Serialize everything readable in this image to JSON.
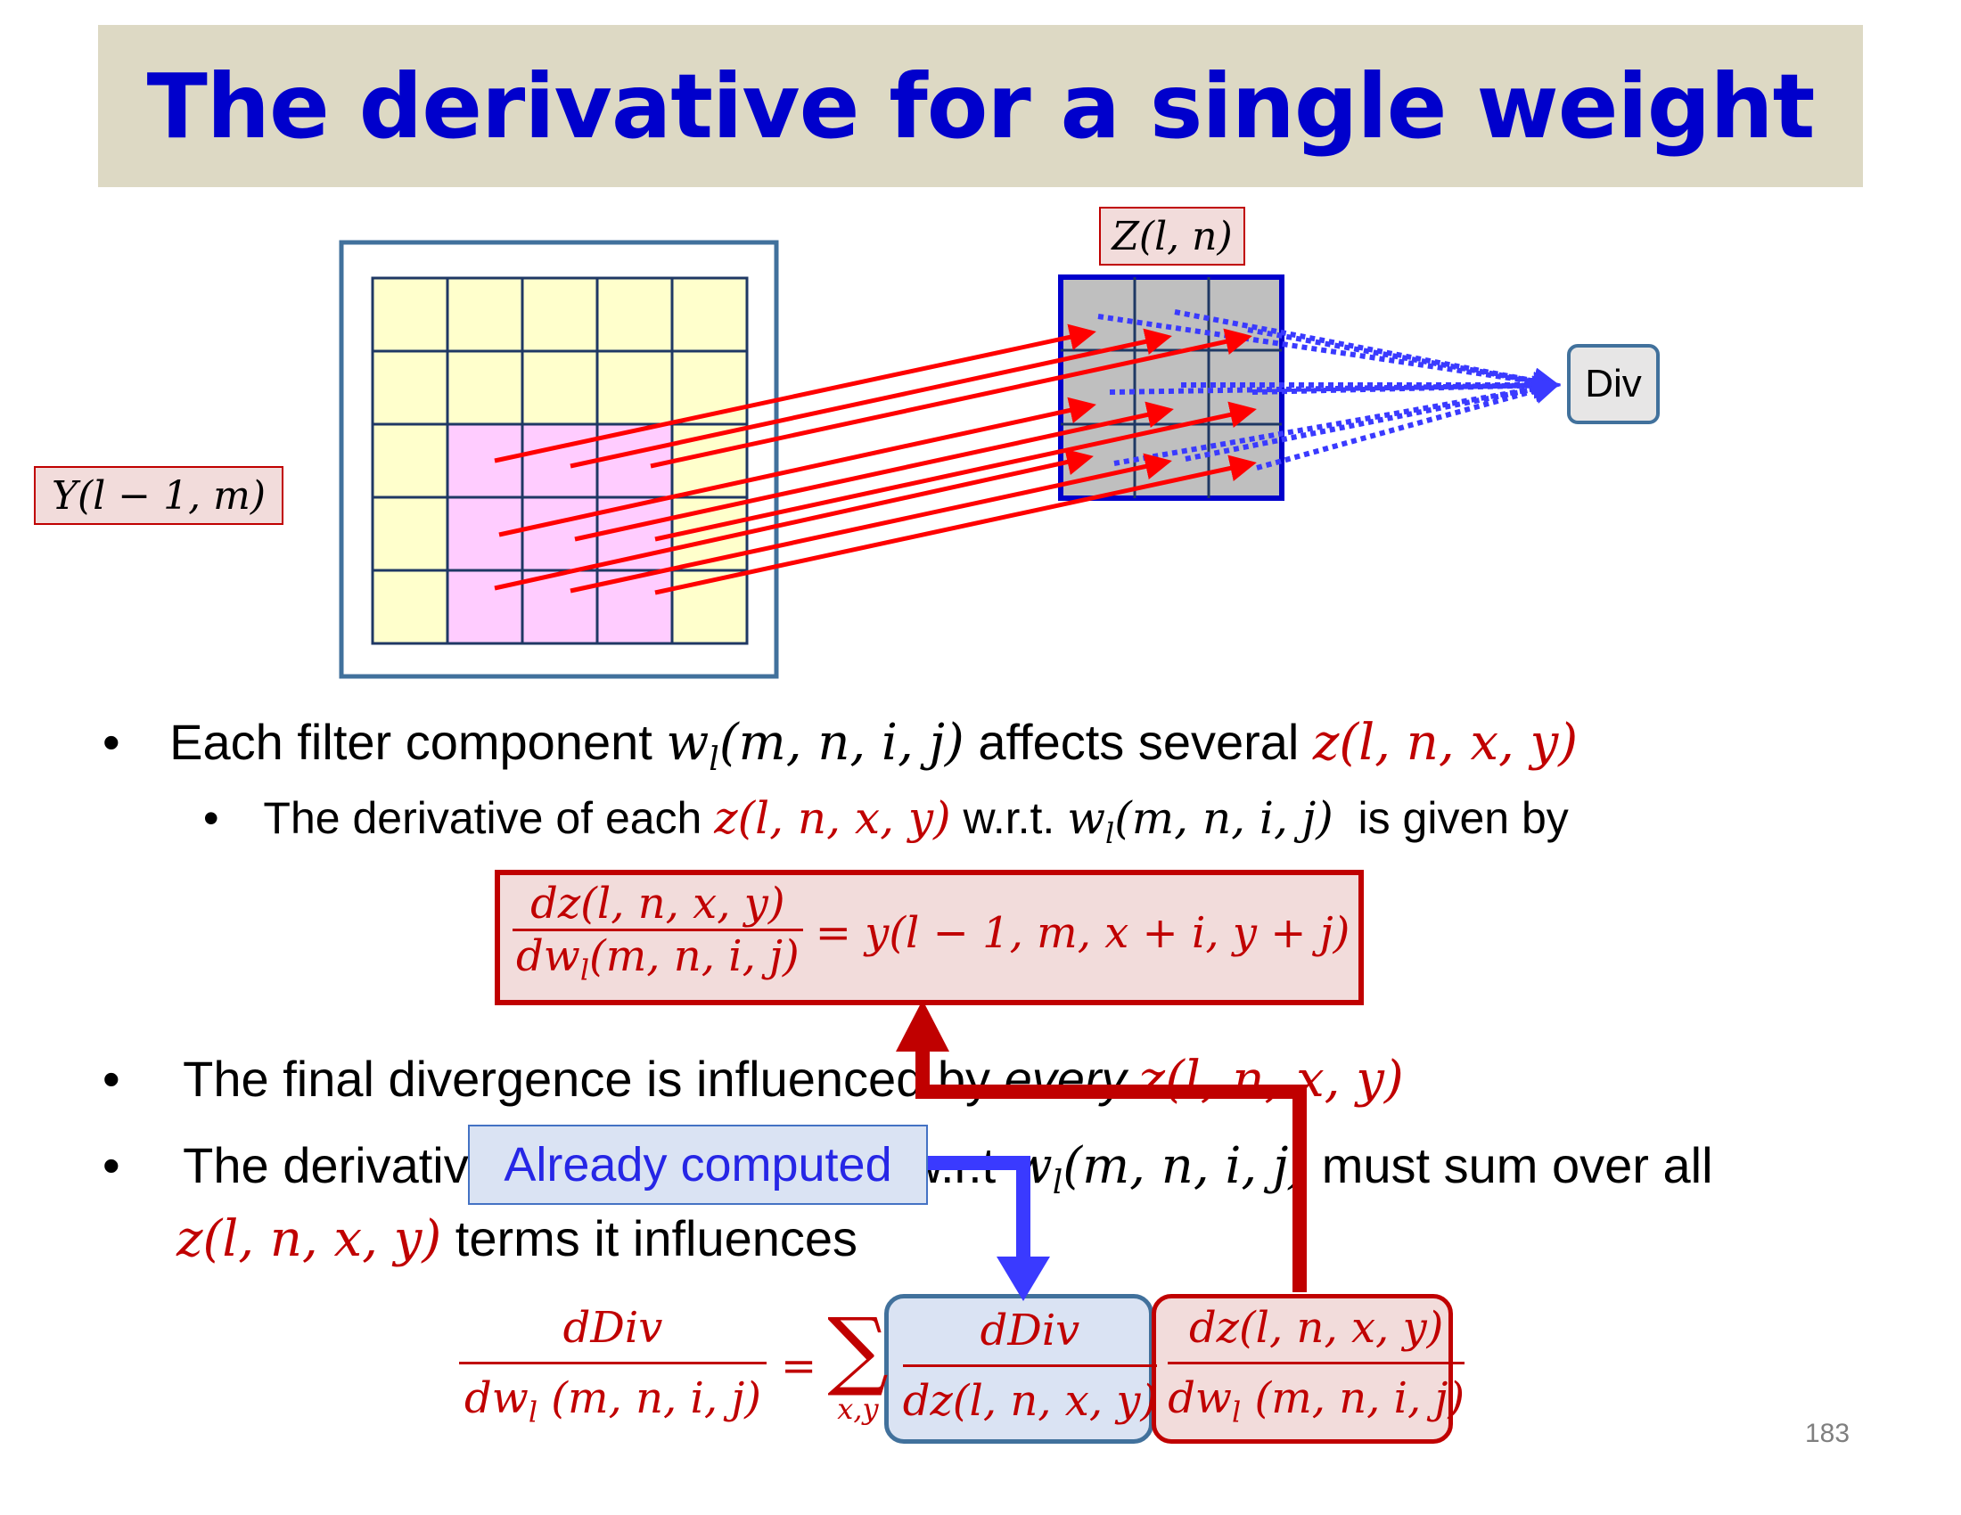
{
  "title": "The derivative for a single weight",
  "diagram": {
    "y_label": "Y(l − 1, m)",
    "z_label": "Z(l, n)",
    "div_label": "Div"
  },
  "bullets": {
    "b1": {
      "text_a": "Each filter component ",
      "math_a": "w",
      "math_a_sub": "l",
      "math_a_args": "(m, n, i, j)",
      "text_b": " affects several ",
      "math_b": "z(l, n, x, y)"
    },
    "b1_sub": {
      "text_a": "The derivative of each ",
      "math_a": "z(l, n, x, y)",
      "text_b": " w.r.t. ",
      "math_b": "w",
      "math_b_sub": "l",
      "math_b_args": "(m, n, i, j)",
      "text_c": "  is given by"
    },
    "eq1": {
      "num": "dz(l, n, x, y)",
      "den": "dw",
      "den_sub": "l",
      "den_args": "(m, n, i, j)",
      "rhs": "= y(l − 1, m, x + i, y + j)"
    },
    "b2": {
      "text_a": "The final divergence is influenced by ",
      "emph": "every",
      "math": "z(l, n, x, y)"
    },
    "b3": {
      "text_a": "The derivative of the divergence w.r.t ",
      "math_a": "w",
      "math_a_sub": "l",
      "math_a_args": "(m, n, i, j)",
      "text_b": " must sum over all",
      "line2_math": "z(l, n, x, y)",
      "line2_text": " terms it influences"
    },
    "eq2": {
      "lhs_num": "dDiv",
      "lhs_den": "dw",
      "lhs_den_sub": "l",
      "lhs_den_args": " (m, n, i, j)",
      "equals": "=",
      "sum": "∑",
      "sum_sub": "x,y",
      "t1_num": "dDiv",
      "t1_den": "dz(l, n, x, y)",
      "t2_num": "dz(l, n, x, y)",
      "t2_den": "dw",
      "t2_den_sub": "l",
      "t2_den_args": " (m, n, i, j)"
    }
  },
  "callout": "Already computed",
  "page_number": "183",
  "colors": {
    "title_text": "#0000cc",
    "title_bg": "#ddd9c4",
    "math_red": "#c00000",
    "arrow_red": "#ff0000",
    "arrow_blue": "#3a3aff",
    "grid_yellow": "#ffffcc",
    "grid_pink": "#ffccff",
    "grid_gray": "#bfbfbf"
  }
}
